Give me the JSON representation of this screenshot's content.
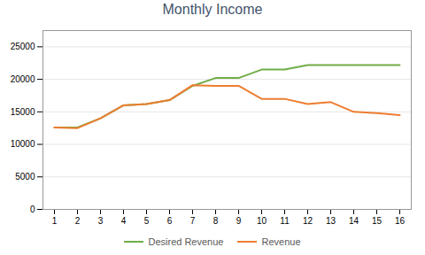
{
  "chart_data": {
    "type": "line",
    "title": "Monthly Income",
    "x": [
      1,
      2,
      3,
      4,
      5,
      6,
      7,
      8,
      9,
      10,
      11,
      12,
      13,
      14,
      15,
      16
    ],
    "series": [
      {
        "name": "Desired Revenue",
        "color": "#70AD47",
        "values": [
          12600,
          12600,
          14000,
          16000,
          16200,
          16800,
          19000,
          20200,
          20200,
          21500,
          21500,
          22200,
          22200,
          22200,
          22200,
          22200
        ]
      },
      {
        "name": "Revenue",
        "color": "#ED7D31",
        "values": [
          12600,
          12500,
          14000,
          16000,
          16200,
          16800,
          19100,
          19000,
          19000,
          17000,
          17000,
          16200,
          16500,
          15000,
          14800,
          14500
        ]
      }
    ],
    "xlim": [
      0.5,
      16.5
    ],
    "xticks": [
      1,
      2,
      3,
      4,
      5,
      6,
      7,
      8,
      9,
      10,
      11,
      12,
      13,
      14,
      15,
      16
    ],
    "ylim": [
      0,
      27500
    ],
    "yticks": [
      0,
      5000,
      10000,
      15000,
      20000,
      25000
    ],
    "grid": "y",
    "legend": "bottom"
  }
}
